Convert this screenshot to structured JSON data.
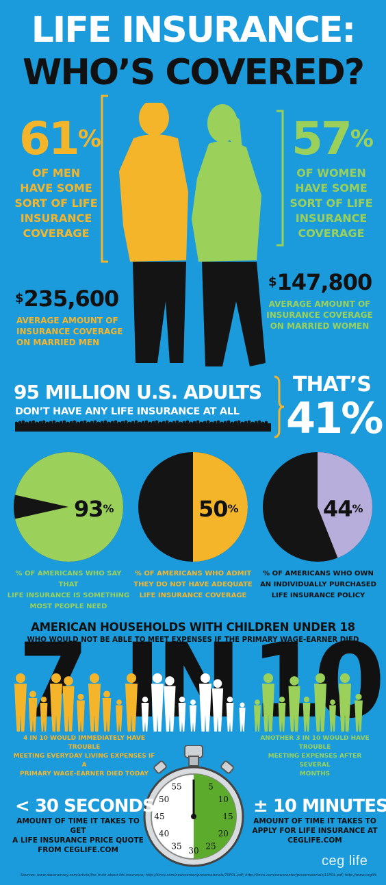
{
  "header": {
    "title_line1": "LIFE INSURANCE:",
    "title_line2": "WHO’S COVERED?"
  },
  "colors": {
    "background": "#1b9bdb",
    "men_orange": "#f5b52a",
    "women_green": "#9bd15a",
    "pie_purple": "#b7aedb",
    "dark": "#141414"
  },
  "men": {
    "pct_number": "61",
    "pct_sign": "%",
    "coverage_lines": [
      "OF MEN",
      "HAVE SOME",
      "SORT OF LIFE",
      "INSURANCE",
      "COVERAGE"
    ],
    "dollar_sign": "$",
    "amount": "235,600",
    "amount_lines": [
      "AVERAGE AMOUNT OF",
      "INSURANCE COVERAGE",
      "ON MARRIED MEN"
    ]
  },
  "women": {
    "pct_number": "57",
    "pct_sign": "%",
    "coverage_lines": [
      "OF WOMEN",
      "HAVE SOME",
      "SORT OF LIFE",
      "INSURANCE",
      "COVERAGE"
    ],
    "dollar_sign": "$",
    "amount": "147,800",
    "amount_lines": [
      "AVERAGE AMOUNT OF",
      "INSURANCE COVERAGE",
      "ON MARRIED WOMEN"
    ]
  },
  "uninsured": {
    "headline": "95 MILLION U.S. ADULTS",
    "subline": "DON’T HAVE ANY LIFE INSURANCE AT ALL",
    "thats": "THAT’S",
    "pct": "41%"
  },
  "pies": [
    {
      "value": 93,
      "label_num": "93",
      "label_sign": "%",
      "caption_lines": [
        "% OF AMERICANS WHO SAY THAT",
        "LIFE INSURANCE IS SOMETHING",
        "MOST PEOPLE NEED"
      ],
      "fill_color": "#9bd15a",
      "caption_color": "#9bd15a"
    },
    {
      "value": 50,
      "label_num": "50",
      "label_sign": "%",
      "caption_lines": [
        "% OF AMERICANS WHO ADMIT",
        "THEY DO NOT HAVE ADEQUATE",
        "LIFE INSURANCE COVERAGE"
      ],
      "fill_color": "#f5b52a",
      "caption_color": "#f5b52a"
    },
    {
      "value": 44,
      "label_num": "44",
      "label_sign": "%",
      "caption_lines": [
        "% OF AMERICANS WHO OWN",
        "AN INDIVIDUALLY PURCHASED",
        "LIFE INSURANCE POLICY"
      ],
      "fill_color": "#b7aedb",
      "caption_color": "#111111"
    }
  ],
  "households": {
    "title_line1": "AMERICAN HOUSEHOLDS WITH CHILDREN UNDER 18",
    "title_line2": "WHO WOULD NOT BE ABLE TO MEET EXPENSES IF THE PRIMARY WAGE-EARNER DIED",
    "big_7": "7",
    "big_in": "IN",
    "big_10": "10",
    "left_caption_lines": [
      "4 IN 10 WOULD IMMEDIATELY HAVE TROUBLE",
      "MEETING EVERYDAY LIVING EXPENSES IF A",
      "PRIMARY WAGE-EARNER DIED TODAY"
    ],
    "right_caption_lines": [
      "ANOTHER 3 IN 10 WOULD HAVE TROUBLE",
      "MEETING EXPENSES AFTER SEVERAL",
      "MONTHS"
    ]
  },
  "timing": {
    "left_headline": "< 30 SECONDS",
    "left_lines": [
      "AMOUNT OF TIME IT TAKES TO GET",
      "A LIFE INSURANCE PRICE QUOTE",
      "FROM CEGLIFE.COM"
    ],
    "right_headline": "± 10 MINUTES",
    "right_lines": [
      "AMOUNT OF TIME IT TAKES TO",
      "APPLY FOR LIFE INSURANCE AT",
      "CEGLIFE.COM"
    ],
    "dial_numbers": [
      "5",
      "10",
      "15",
      "20",
      "25",
      "30",
      "35",
      "40",
      "45",
      "50",
      "55"
    ]
  },
  "footer": {
    "logo": "ceg life",
    "sources": "Sources: www.daveramsey.com/article/the-truth-about-life-insurance; http://limra.com/newscenter/pressmaterials/70FOL.pdf; http://limra.com/newscenter/pressmaterials/11FOL.pdf; http://www.ceglife.com"
  }
}
